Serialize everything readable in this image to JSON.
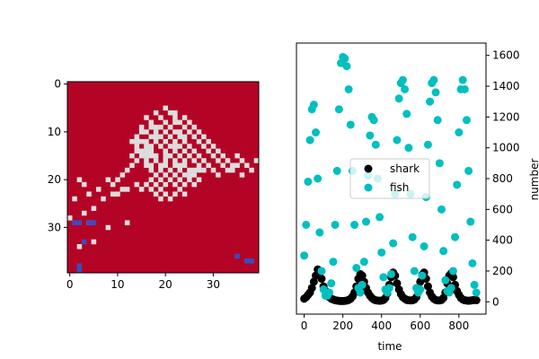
{
  "chart_data": [
    {
      "type": "heatmap",
      "grid_size": [
        40,
        40
      ],
      "x_ticks": [
        0,
        10,
        20,
        30
      ],
      "y_ticks": [
        0,
        10,
        20,
        30
      ],
      "colors": {
        "background": "#b40426",
        "fish": "#dddddd",
        "shark": "#3b4cc0"
      },
      "fish_cells": [
        [
          13,
          12
        ],
        [
          13,
          15
        ],
        [
          14,
          11
        ],
        [
          14,
          12
        ],
        [
          14,
          13
        ],
        [
          14,
          16
        ],
        [
          15,
          9
        ],
        [
          15,
          12
        ],
        [
          15,
          14
        ],
        [
          15,
          15
        ],
        [
          16,
          7
        ],
        [
          16,
          10
        ],
        [
          16,
          12
        ],
        [
          16,
          13
        ],
        [
          16,
          15
        ],
        [
          16,
          16
        ],
        [
          16,
          17
        ],
        [
          16,
          21
        ],
        [
          17,
          8
        ],
        [
          17,
          9
        ],
        [
          17,
          11
        ],
        [
          17,
          13
        ],
        [
          17,
          14
        ],
        [
          17,
          17
        ],
        [
          17,
          18
        ],
        [
          17,
          20
        ],
        [
          17,
          22
        ],
        [
          18,
          6
        ],
        [
          18,
          9
        ],
        [
          18,
          10
        ],
        [
          18,
          12
        ],
        [
          18,
          15
        ],
        [
          18,
          16
        ],
        [
          18,
          19
        ],
        [
          18,
          21
        ],
        [
          18,
          23
        ],
        [
          19,
          7
        ],
        [
          19,
          11
        ],
        [
          19,
          13
        ],
        [
          19,
          17
        ],
        [
          19,
          18
        ],
        [
          19,
          20
        ],
        [
          19,
          22
        ],
        [
          19,
          24
        ],
        [
          20,
          5
        ],
        [
          20,
          8
        ],
        [
          20,
          10
        ],
        [
          20,
          12
        ],
        [
          20,
          14
        ],
        [
          20,
          16
        ],
        [
          20,
          17
        ],
        [
          20,
          19
        ],
        [
          20,
          21
        ],
        [
          20,
          23
        ],
        [
          21,
          6
        ],
        [
          21,
          9
        ],
        [
          21,
          13
        ],
        [
          21,
          15
        ],
        [
          21,
          18
        ],
        [
          21,
          20
        ],
        [
          21,
          24
        ],
        [
          22,
          7
        ],
        [
          22,
          10
        ],
        [
          22,
          12
        ],
        [
          22,
          14
        ],
        [
          22,
          16
        ],
        [
          22,
          17
        ],
        [
          22,
          19
        ],
        [
          22,
          21
        ],
        [
          22,
          23
        ],
        [
          23,
          8
        ],
        [
          23,
          11
        ],
        [
          23,
          13
        ],
        [
          23,
          15
        ],
        [
          23,
          18
        ],
        [
          23,
          20
        ],
        [
          23,
          22
        ],
        [
          24,
          9
        ],
        [
          24,
          12
        ],
        [
          24,
          14
        ],
        [
          24,
          16
        ],
        [
          24,
          17
        ],
        [
          24,
          19
        ],
        [
          24,
          21
        ],
        [
          24,
          23
        ],
        [
          25,
          10
        ],
        [
          25,
          13
        ],
        [
          25,
          15
        ],
        [
          25,
          18
        ],
        [
          25,
          20
        ],
        [
          26,
          11
        ],
        [
          26,
          14
        ],
        [
          26,
          16
        ],
        [
          26,
          19
        ],
        [
          26,
          21
        ],
        [
          27,
          12
        ],
        [
          27,
          15
        ],
        [
          27,
          17
        ],
        [
          27,
          20
        ],
        [
          28,
          13
        ],
        [
          28,
          16
        ],
        [
          28,
          18
        ],
        [
          29,
          14
        ],
        [
          29,
          17
        ],
        [
          30,
          15
        ],
        [
          30,
          18
        ],
        [
          31,
          16
        ],
        [
          31,
          19
        ],
        [
          32,
          17
        ],
        [
          33,
          18
        ],
        [
          34,
          18
        ],
        [
          35,
          15
        ],
        [
          35,
          17
        ],
        [
          36,
          16
        ],
        [
          36,
          19
        ],
        [
          37,
          17
        ],
        [
          38,
          18
        ],
        [
          39,
          16
        ],
        [
          21,
          9
        ],
        [
          22,
          8
        ],
        [
          22,
          6
        ],
        [
          24,
          7
        ],
        [
          25,
          8
        ],
        [
          23,
          10
        ],
        [
          26,
          9
        ],
        [
          27,
          10
        ],
        [
          28,
          11
        ],
        [
          29,
          12
        ],
        [
          30,
          13
        ],
        [
          31,
          14
        ],
        [
          32,
          15
        ],
        [
          33,
          16
        ],
        [
          34,
          17
        ],
        [
          25,
          19
        ],
        [
          26,
          18
        ],
        [
          27,
          18
        ],
        [
          23,
          17
        ],
        [
          21,
          11
        ],
        [
          19,
          9
        ],
        [
          18,
          11
        ],
        [
          20,
          15
        ],
        [
          22,
          13
        ],
        [
          24,
          11
        ],
        [
          17,
          15
        ],
        [
          16,
          14
        ],
        [
          15,
          10
        ],
        [
          14,
          14
        ],
        [
          13,
          17
        ],
        [
          12,
          18
        ],
        [
          11,
          19
        ],
        [
          10,
          20
        ],
        [
          9,
          21
        ],
        [
          8,
          20
        ],
        [
          10,
          23
        ],
        [
          12,
          22
        ],
        [
          14,
          21
        ],
        [
          15,
          22
        ],
        [
          11,
          22
        ],
        [
          2,
          20
        ],
        [
          3,
          21
        ],
        [
          4,
          23
        ],
        [
          6,
          22
        ],
        [
          1,
          24
        ],
        [
          9,
          23
        ],
        [
          7,
          24
        ],
        [
          5,
          26
        ],
        [
          3,
          27
        ],
        [
          0,
          28
        ],
        [
          12,
          29
        ],
        [
          5,
          33
        ],
        [
          2,
          34
        ],
        [
          8,
          30
        ],
        [
          4,
          29
        ]
      ],
      "shark_cells": [
        [
          1,
          29
        ],
        [
          2,
          29
        ],
        [
          4,
          29
        ],
        [
          5,
          29
        ],
        [
          3,
          33
        ],
        [
          2,
          38
        ],
        [
          2,
          39
        ],
        [
          35,
          36
        ],
        [
          37,
          37
        ],
        [
          38,
          37
        ]
      ]
    },
    {
      "type": "scatter",
      "xlabel": "time",
      "ylabel": "number",
      "x_ticks": [
        0,
        200,
        400,
        600,
        800
      ],
      "y_ticks": [
        0,
        200,
        400,
        600,
        800,
        1000,
        1200,
        1400,
        1600
      ],
      "xlim": [
        -40,
        940
      ],
      "ylim": [
        -80,
        1680
      ],
      "legend": {
        "placement": "center",
        "entries": [
          "shark",
          "fish"
        ]
      },
      "series": [
        {
          "name": "shark",
          "color": "#000000",
          "x": [
            0,
            10,
            20,
            30,
            40,
            50,
            60,
            70,
            80,
            90,
            100,
            110,
            120,
            130,
            140,
            150,
            160,
            170,
            180,
            190,
            200,
            210,
            220,
            230,
            240,
            250,
            260,
            270,
            280,
            290,
            300,
            310,
            320,
            330,
            340,
            350,
            360,
            370,
            380,
            390,
            400,
            410,
            420,
            430,
            440,
            450,
            460,
            470,
            480,
            490,
            500,
            510,
            520,
            530,
            540,
            550,
            560,
            570,
            580,
            590,
            600,
            610,
            620,
            630,
            640,
            650,
            660,
            670,
            680,
            690,
            700,
            710,
            720,
            730,
            740,
            750,
            760,
            770,
            780,
            790,
            800,
            810,
            820,
            830,
            840,
            850,
            860,
            870,
            880,
            890
          ],
          "y": [
            20,
            30,
            45,
            60,
            90,
            130,
            170,
            210,
            190,
            150,
            100,
            70,
            45,
            30,
            20,
            15,
            10,
            8,
            6,
            5,
            5,
            6,
            8,
            12,
            20,
            35,
            60,
            100,
            150,
            180,
            170,
            130,
            90,
            60,
            40,
            25,
            15,
            10,
            8,
            7,
            8,
            12,
            25,
            55,
            110,
            160,
            190,
            170,
            120,
            80,
            50,
            30,
            20,
            12,
            10,
            9,
            10,
            15,
            30,
            70,
            130,
            175,
            190,
            150,
            100,
            60,
            35,
            20,
            12,
            9,
            9,
            12,
            25,
            60,
            120,
            170,
            185,
            160,
            110,
            70,
            45,
            25,
            15,
            10,
            8,
            7,
            8,
            10,
            12,
            10
          ]
        },
        {
          "name": "fish",
          "color": "#00bfbf",
          "x": [
            0,
            10,
            20,
            30,
            40,
            50,
            60,
            70,
            80,
            90,
            100,
            110,
            120,
            130,
            140,
            150,
            160,
            170,
            180,
            190,
            200,
            210,
            220,
            230,
            240,
            250,
            260,
            270,
            280,
            290,
            300,
            310,
            320,
            330,
            340,
            350,
            360,
            370,
            380,
            390,
            400,
            410,
            420,
            430,
            440,
            450,
            460,
            470,
            480,
            490,
            500,
            510,
            520,
            530,
            540,
            550,
            560,
            570,
            580,
            590,
            600,
            610,
            620,
            630,
            640,
            650,
            660,
            670,
            680,
            690,
            700,
            710,
            720,
            730,
            740,
            750,
            760,
            770,
            780,
            790,
            800,
            810,
            820,
            830,
            840,
            850,
            860,
            870,
            880,
            890
          ],
          "y": [
            300,
            500,
            780,
            1050,
            1250,
            1280,
            1100,
            800,
            450,
            200,
            80,
            40,
            40,
            60,
            120,
            260,
            500,
            850,
            1250,
            1550,
            1590,
            1580,
            1530,
            1380,
            1150,
            850,
            500,
            220,
            90,
            60,
            110,
            260,
            520,
            820,
            1080,
            1200,
            1180,
            1020,
            800,
            550,
            320,
            160,
            80,
            60,
            90,
            180,
            380,
            700,
            1050,
            1320,
            1420,
            1440,
            1380,
            1220,
            1000,
            700,
            420,
            200,
            90,
            60,
            80,
            170,
            360,
            680,
            1020,
            1300,
            1420,
            1440,
            1360,
            1180,
            900,
            600,
            330,
            140,
            70,
            60,
            90,
            200,
            420,
            760,
            1100,
            1380,
            1440,
            1380,
            1180,
            850,
            520,
            250,
            110,
            60
          ]
        }
      ]
    }
  ]
}
